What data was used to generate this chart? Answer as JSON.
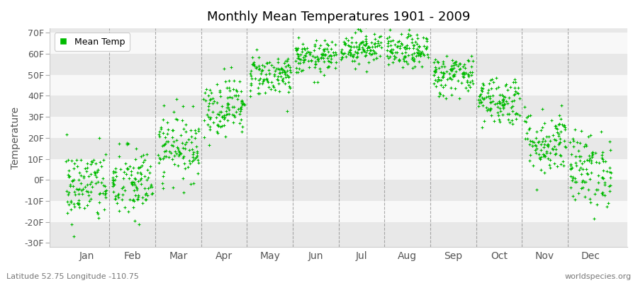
{
  "title": "Monthly Mean Temperatures 1901 - 2009",
  "ylabel": "Temperature",
  "xlabel_labels": [
    "Jan",
    "Feb",
    "Mar",
    "Apr",
    "May",
    "Jun",
    "Jul",
    "Aug",
    "Sep",
    "Oct",
    "Nov",
    "Dec"
  ],
  "ytick_labels": [
    "-30F",
    "-20F",
    "-10F",
    "0F",
    "10F",
    "20F",
    "30F",
    "40F",
    "50F",
    "60F",
    "70F"
  ],
  "ytick_values": [
    -30,
    -20,
    -10,
    0,
    10,
    20,
    30,
    40,
    50,
    60,
    70
  ],
  "ylim": [
    -32,
    72
  ],
  "dot_color": "#00bb00",
  "legend_label": "Mean Temp",
  "background_color": "#ffffff",
  "band_colors": [
    "#e8e8e8",
    "#f8f8f8"
  ],
  "subtitle": "Latitude 52.75 Longitude -110.75",
  "watermark": "worldspecies.org",
  "years": 109,
  "monthly_means_f": [
    -3,
    -2,
    16,
    35,
    50,
    58,
    63,
    61,
    50,
    38,
    18,
    5
  ],
  "monthly_stds_f": [
    9,
    9,
    8,
    7,
    5,
    4,
    4,
    4,
    5,
    6,
    8,
    9
  ],
  "vline_color": "#888888"
}
